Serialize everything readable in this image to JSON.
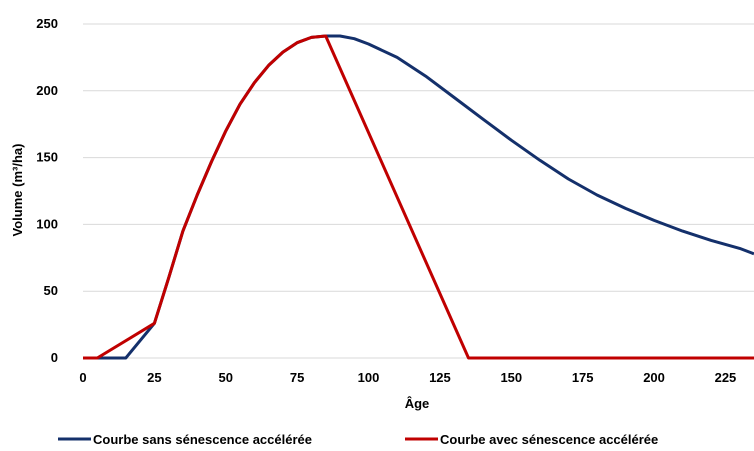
{
  "chart_data": {
    "type": "line",
    "xlabel": "Âge",
    "ylabel": "Volume (m³/ha)",
    "xlim": [
      0,
      235
    ],
    "ylim": [
      0,
      250
    ],
    "x_ticks": [
      0,
      25,
      50,
      75,
      100,
      125,
      150,
      175,
      200,
      225
    ],
    "y_ticks": [
      0,
      50,
      100,
      150,
      200,
      250
    ],
    "grid": "horizontal",
    "legend_position": "bottom",
    "series": [
      {
        "name": "Courbe sans sénescence accélérée",
        "color": "#14306b",
        "points": [
          [
            0,
            0
          ],
          [
            15,
            0
          ],
          [
            25,
            26
          ],
          [
            30,
            60
          ],
          [
            35,
            95
          ],
          [
            40,
            122
          ],
          [
            45,
            147
          ],
          [
            50,
            170
          ],
          [
            55,
            190
          ],
          [
            60,
            206
          ],
          [
            65,
            219
          ],
          [
            70,
            229
          ],
          [
            75,
            236
          ],
          [
            80,
            240
          ],
          [
            85,
            241
          ],
          [
            90,
            241
          ],
          [
            95,
            239
          ],
          [
            100,
            235
          ],
          [
            110,
            225
          ],
          [
            120,
            211
          ],
          [
            130,
            195
          ],
          [
            140,
            179
          ],
          [
            150,
            163
          ],
          [
            160,
            148
          ],
          [
            170,
            134
          ],
          [
            180,
            122
          ],
          [
            190,
            112
          ],
          [
            200,
            103
          ],
          [
            210,
            95
          ],
          [
            220,
            88
          ],
          [
            230,
            82
          ],
          [
            235,
            78
          ]
        ]
      },
      {
        "name": "Courbe avec sénescence accélérée",
        "color": "#c00000",
        "points": [
          [
            0,
            0
          ],
          [
            5,
            0
          ],
          [
            25,
            26
          ],
          [
            30,
            60
          ],
          [
            35,
            95
          ],
          [
            40,
            122
          ],
          [
            45,
            147
          ],
          [
            50,
            170
          ],
          [
            55,
            190
          ],
          [
            60,
            206
          ],
          [
            65,
            219
          ],
          [
            70,
            229
          ],
          [
            75,
            236
          ],
          [
            80,
            240
          ],
          [
            85,
            241
          ],
          [
            135,
            0
          ],
          [
            235,
            0
          ]
        ]
      }
    ]
  }
}
